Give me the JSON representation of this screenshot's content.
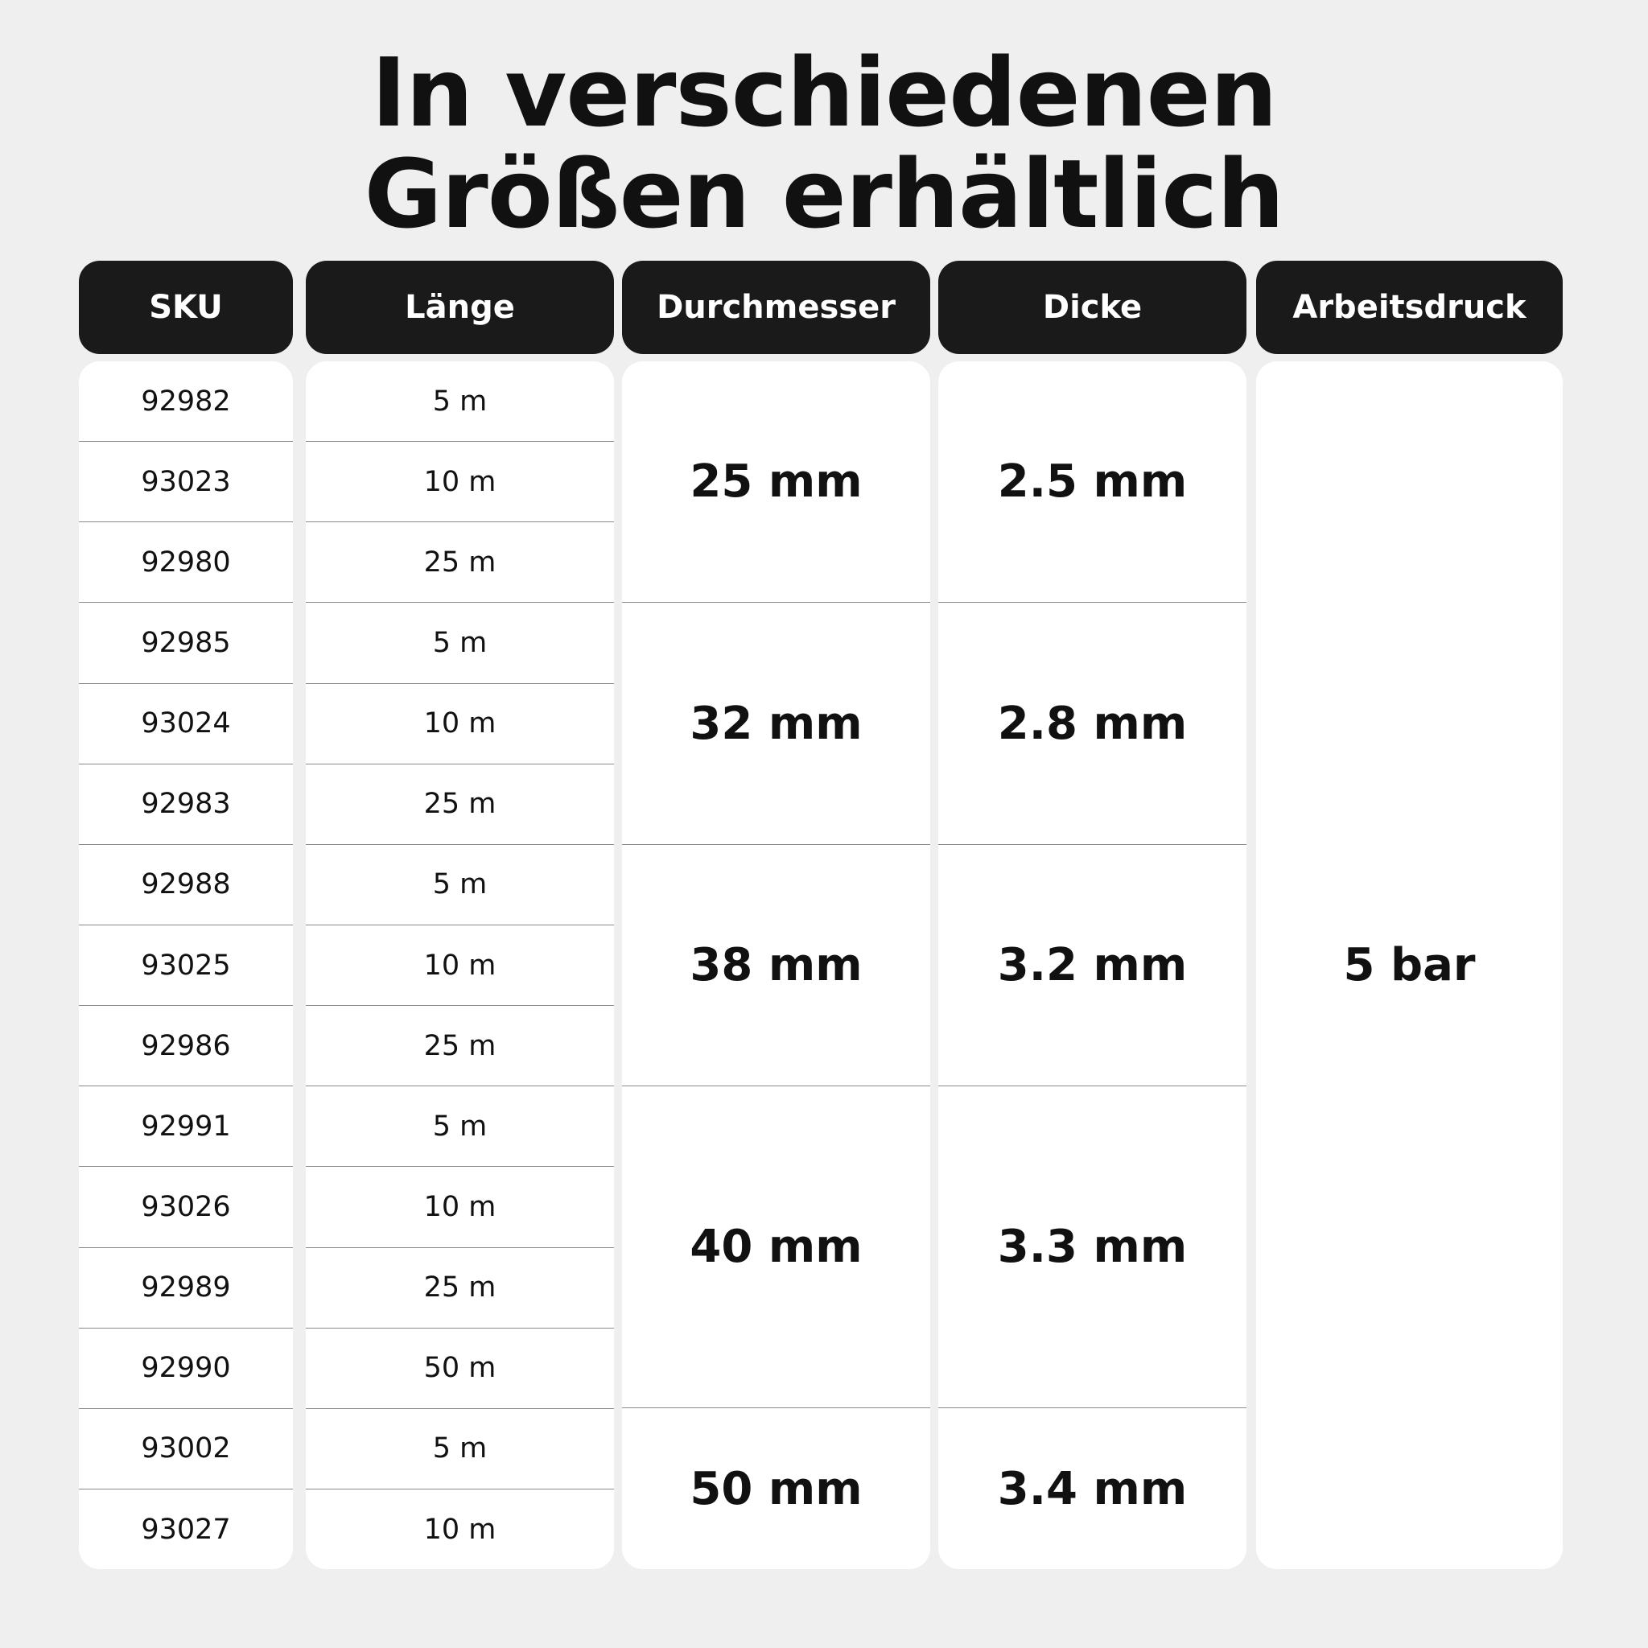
{
  "title": {
    "line1": "In verschiedenen",
    "line2": "Größen erhältlich"
  },
  "headers": {
    "sku": "SKU",
    "laenge": "Länge",
    "durchmesser": "Durchmesser",
    "dicke": "Dicke",
    "arbeitsdruck": "Arbeitsdruck"
  },
  "rows": [
    {
      "sku": "92982",
      "laenge": "5 m"
    },
    {
      "sku": "93023",
      "laenge": "10 m"
    },
    {
      "sku": "92980",
      "laenge": "25 m"
    },
    {
      "sku": "92985",
      "laenge": "5 m"
    },
    {
      "sku": "93024",
      "laenge": "10 m"
    },
    {
      "sku": "92983",
      "laenge": "25 m"
    },
    {
      "sku": "92988",
      "laenge": "5 m"
    },
    {
      "sku": "93025",
      "laenge": "10 m"
    },
    {
      "sku": "92986",
      "laenge": "25 m"
    },
    {
      "sku": "92991",
      "laenge": "5 m"
    },
    {
      "sku": "93026",
      "laenge": "10 m"
    },
    {
      "sku": "92989",
      "laenge": "25 m"
    },
    {
      "sku": "92990",
      "laenge": "50 m"
    },
    {
      "sku": "93002",
      "laenge": "5 m"
    },
    {
      "sku": "93027",
      "laenge": "10 m"
    }
  ],
  "groups": [
    {
      "durchmesser": "25 mm",
      "dicke": "2.5 mm",
      "rows": 3
    },
    {
      "durchmesser": "32 mm",
      "dicke": "2.8 mm",
      "rows": 3
    },
    {
      "durchmesser": "38 mm",
      "dicke": "3.2 mm",
      "rows": 3
    },
    {
      "durchmesser": "40 mm",
      "dicke": "3.3 mm",
      "rows": 4
    },
    {
      "durchmesser": "50 mm",
      "dicke": "3.4 mm",
      "rows": 2
    }
  ],
  "arbeitsdruck": "5 bar"
}
